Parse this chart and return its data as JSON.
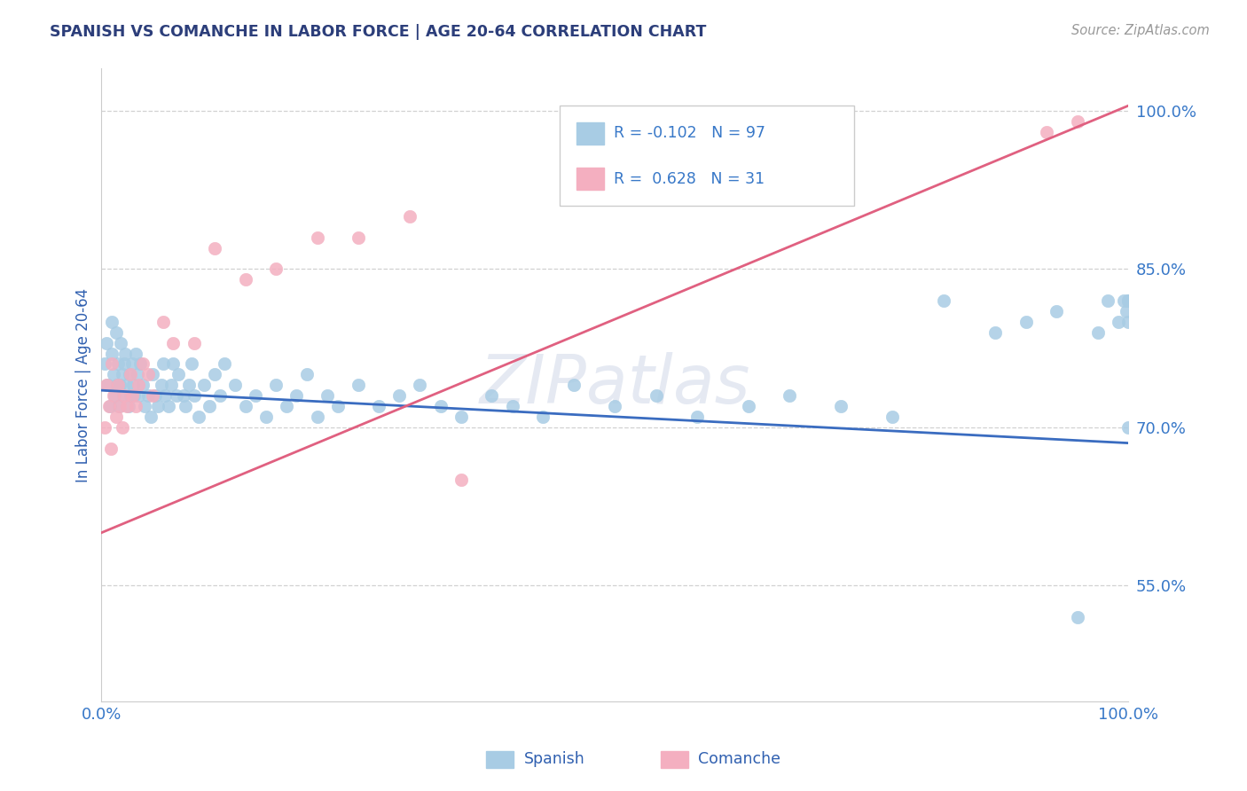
{
  "title": "SPANISH VS COMANCHE IN LABOR FORCE | AGE 20-64 CORRELATION CHART",
  "source_text": "Source: ZipAtlas.com",
  "ylabel": "In Labor Force | Age 20-64",
  "xlim": [
    0.0,
    1.0
  ],
  "ylim": [
    0.44,
    1.04
  ],
  "watermark": "ZIPatlas",
  "legend_R_spanish": "-0.102",
  "legend_N_spanish": "97",
  "legend_R_comanche": "0.628",
  "legend_N_comanche": "31",
  "spanish_color": "#a8cce4",
  "comanche_color": "#f4afc0",
  "spanish_line_color": "#3a6cc0",
  "comanche_line_color": "#e06080",
  "background_color": "#ffffff",
  "grid_color": "#cccccc",
  "title_color": "#2c3e7a",
  "label_color": "#3060b0",
  "tick_color": "#3878c8",
  "spanish_x": [
    0.003,
    0.005,
    0.006,
    0.008,
    0.01,
    0.01,
    0.012,
    0.013,
    0.014,
    0.015,
    0.016,
    0.017,
    0.018,
    0.019,
    0.02,
    0.021,
    0.022,
    0.023,
    0.025,
    0.026,
    0.027,
    0.028,
    0.03,
    0.031,
    0.032,
    0.033,
    0.035,
    0.036,
    0.038,
    0.04,
    0.042,
    0.045,
    0.048,
    0.05,
    0.052,
    0.055,
    0.058,
    0.06,
    0.062,
    0.065,
    0.068,
    0.07,
    0.073,
    0.075,
    0.08,
    0.082,
    0.085,
    0.088,
    0.09,
    0.095,
    0.1,
    0.105,
    0.11,
    0.115,
    0.12,
    0.13,
    0.14,
    0.15,
    0.16,
    0.17,
    0.18,
    0.19,
    0.2,
    0.21,
    0.22,
    0.23,
    0.25,
    0.27,
    0.29,
    0.31,
    0.33,
    0.35,
    0.38,
    0.4,
    0.43,
    0.46,
    0.5,
    0.54,
    0.58,
    0.63,
    0.67,
    0.72,
    0.77,
    0.82,
    0.87,
    0.9,
    0.93,
    0.95,
    0.97,
    0.98,
    0.99,
    0.995,
    0.998,
    1.0,
    1.0,
    1.0,
    1.0
  ],
  "spanish_y": [
    0.76,
    0.78,
    0.74,
    0.72,
    0.8,
    0.77,
    0.75,
    0.73,
    0.79,
    0.74,
    0.76,
    0.72,
    0.74,
    0.78,
    0.75,
    0.73,
    0.76,
    0.77,
    0.74,
    0.72,
    0.75,
    0.73,
    0.76,
    0.74,
    0.73,
    0.77,
    0.75,
    0.73,
    0.76,
    0.74,
    0.72,
    0.73,
    0.71,
    0.75,
    0.73,
    0.72,
    0.74,
    0.76,
    0.73,
    0.72,
    0.74,
    0.76,
    0.73,
    0.75,
    0.73,
    0.72,
    0.74,
    0.76,
    0.73,
    0.71,
    0.74,
    0.72,
    0.75,
    0.73,
    0.76,
    0.74,
    0.72,
    0.73,
    0.71,
    0.74,
    0.72,
    0.73,
    0.75,
    0.71,
    0.73,
    0.72,
    0.74,
    0.72,
    0.73,
    0.74,
    0.72,
    0.71,
    0.73,
    0.72,
    0.71,
    0.74,
    0.72,
    0.73,
    0.71,
    0.72,
    0.73,
    0.72,
    0.71,
    0.82,
    0.79,
    0.8,
    0.81,
    0.52,
    0.79,
    0.82,
    0.8,
    0.82,
    0.81,
    0.82,
    0.8,
    0.82,
    0.7
  ],
  "comanche_x": [
    0.003,
    0.005,
    0.007,
    0.009,
    0.01,
    0.012,
    0.014,
    0.016,
    0.018,
    0.02,
    0.022,
    0.025,
    0.028,
    0.03,
    0.033,
    0.036,
    0.04,
    0.045,
    0.05,
    0.06,
    0.07,
    0.09,
    0.11,
    0.14,
    0.17,
    0.21,
    0.25,
    0.3,
    0.35,
    0.92,
    0.95
  ],
  "comanche_y": [
    0.7,
    0.74,
    0.72,
    0.68,
    0.76,
    0.73,
    0.71,
    0.74,
    0.72,
    0.7,
    0.73,
    0.72,
    0.75,
    0.73,
    0.72,
    0.74,
    0.76,
    0.75,
    0.73,
    0.8,
    0.78,
    0.78,
    0.87,
    0.84,
    0.85,
    0.88,
    0.88,
    0.9,
    0.65,
    0.98,
    0.99
  ],
  "sp_line_x0": 0.0,
  "sp_line_x1": 1.0,
  "sp_line_y0": 0.735,
  "sp_line_y1": 0.685,
  "co_line_x0": 0.0,
  "co_line_x1": 1.0,
  "co_line_y0": 0.6,
  "co_line_y1": 1.005
}
